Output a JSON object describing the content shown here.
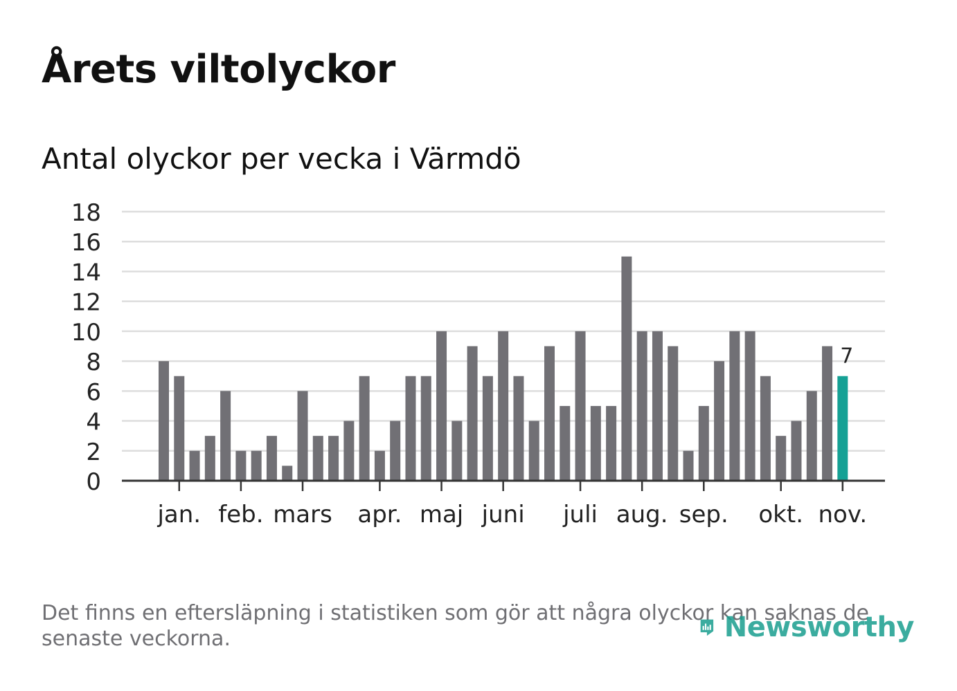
{
  "title": "Årets viltolyckor",
  "subtitle": "Antal olyckor per vecka i Värmdö",
  "footnote": "Det finns en eftersläpning i statistiken som gör att några olyckor kan saknas de senaste veckorna.",
  "logo_text": "Newsworthy",
  "colors": {
    "bar": "#717075",
    "highlight": "#15a195",
    "grid": "#dddddd",
    "axis": "#333333",
    "text": "#222222",
    "brand": "#1a9e8f"
  },
  "chart_data": {
    "type": "bar",
    "title": "Antal olyckor per vecka i Värmdö",
    "xlabel": "",
    "ylabel": "",
    "ylim": [
      0,
      18
    ],
    "yticks": [
      0,
      2,
      4,
      6,
      8,
      10,
      12,
      14,
      16,
      18
    ],
    "grid": true,
    "values": [
      8,
      7,
      2,
      3,
      6,
      2,
      2,
      3,
      1,
      6,
      3,
      3,
      4,
      7,
      2,
      4,
      7,
      7,
      10,
      4,
      9,
      7,
      10,
      7,
      4,
      9,
      5,
      10,
      5,
      5,
      15,
      10,
      10,
      9,
      2,
      5,
      8,
      10,
      10,
      7,
      3,
      4,
      6,
      9,
      7
    ],
    "highlight_index": 44,
    "highlight_label": "7",
    "month_labels": [
      {
        "label": "jan.",
        "week": 1
      },
      {
        "label": "feb.",
        "week": 5
      },
      {
        "label": "mars",
        "week": 9
      },
      {
        "label": "apr.",
        "week": 14
      },
      {
        "label": "maj",
        "week": 18
      },
      {
        "label": "juni",
        "week": 22
      },
      {
        "label": "juli",
        "week": 27
      },
      {
        "label": "aug.",
        "week": 31
      },
      {
        "label": "sep.",
        "week": 35
      },
      {
        "label": "okt.",
        "week": 40
      },
      {
        "label": "nov.",
        "week": 44
      }
    ]
  }
}
